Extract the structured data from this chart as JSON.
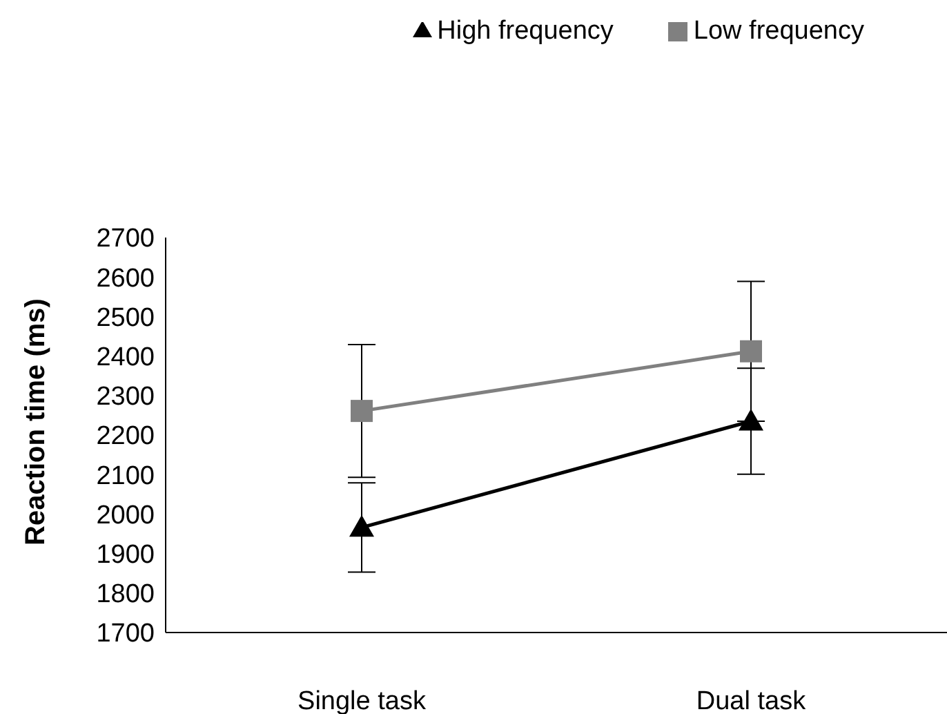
{
  "chart_data": {
    "type": "line",
    "ylabel": "Reaction time (ms)",
    "categories": [
      "Single task",
      "Dual task"
    ],
    "series": [
      {
        "name": "High frequency",
        "color": "#000000",
        "marker": "triangle",
        "values": [
          1966,
          2235
        ],
        "errors": [
          113,
          134
        ]
      },
      {
        "name": "Low frequency",
        "color": "#808080",
        "marker": "square",
        "values": [
          2261,
          2412
        ],
        "errors": [
          168,
          177
        ]
      }
    ],
    "ylim": [
      1700,
      2700
    ],
    "yticks": [
      1700,
      1800,
      1900,
      2000,
      2100,
      2200,
      2300,
      2400,
      2500,
      2600,
      2700
    ],
    "grid": false,
    "legend": "top right"
  }
}
